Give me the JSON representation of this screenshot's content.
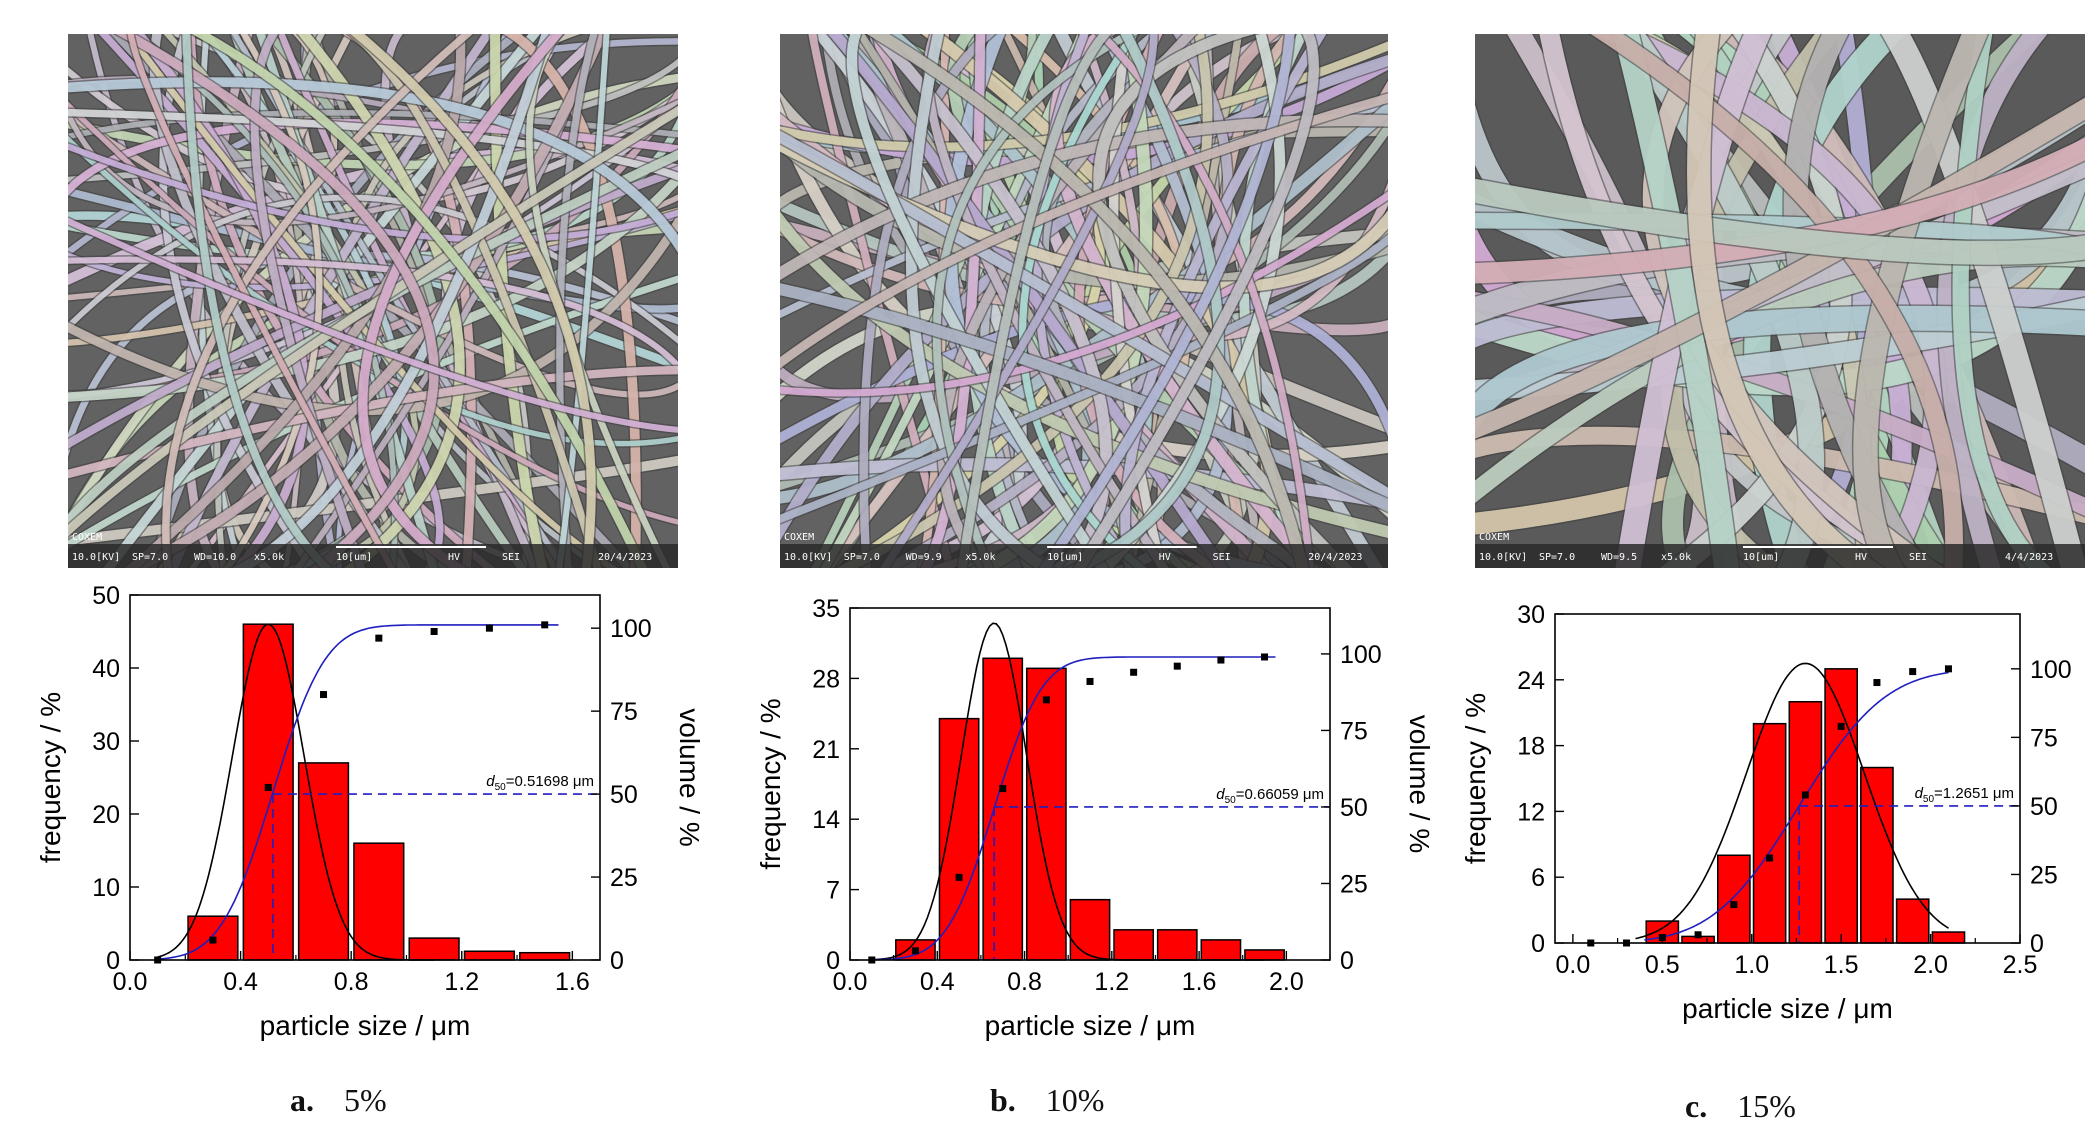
{
  "panels": [
    {
      "sem": {
        "brand": "COXEM",
        "info": [
          "10.0[KV]",
          "SP=7.0",
          "WD=10.0",
          "x5.0k",
          "10[um]",
          "HV",
          "SEI",
          "20/4/2023"
        ]
      },
      "caption": {
        "letter": "a.",
        "text": "5%"
      }
    },
    {
      "sem": {
        "brand": "COXEM",
        "info": [
          "10.0[KV]",
          "SP=7.0",
          "WD=9.9",
          "x5.0k",
          "10[um]",
          "HV",
          "SEI",
          "20/4/2023"
        ]
      },
      "caption": {
        "letter": "b.",
        "text": "10%"
      }
    },
    {
      "sem": {
        "brand": "COXEM",
        "info": [
          "10.0[KV]",
          "SP=7.0",
          "WD=9.5",
          "x5.0k",
          "10[um]",
          "HV",
          "SEI",
          "4/4/2023"
        ]
      },
      "caption": {
        "letter": "c.",
        "text": "15%"
      }
    }
  ],
  "chart_data": [
    {
      "type": "bar",
      "xlabel": "particle size / μm",
      "ylabel": "frequency / %",
      "y2label": "volume / %",
      "xlim": [
        0.0,
        1.7
      ],
      "xticks": [
        "0.0",
        "0.4",
        "0.8",
        "1.2",
        "1.6"
      ],
      "ylim": [
        0,
        50
      ],
      "yticks": [
        "0",
        "10",
        "20",
        "30",
        "40",
        "50"
      ],
      "y2lim": [
        0,
        110
      ],
      "y2ticks": [
        "0",
        "25",
        "50",
        "75",
        "100"
      ],
      "bar_width": 0.2,
      "bars": {
        "x": [
          0.3,
          0.5,
          0.7,
          0.9,
          1.1,
          1.3,
          1.5
        ],
        "y": [
          6,
          46,
          27,
          16,
          3,
          1.2,
          1
        ]
      },
      "volume_points": {
        "x": [
          0.1,
          0.3,
          0.5,
          0.7,
          0.9,
          1.1,
          1.3,
          1.5
        ],
        "y": [
          0,
          6,
          52,
          80,
          97,
          99,
          100,
          101
        ]
      },
      "d50": {
        "value": 0.51698,
        "volume": 50,
        "label_sub": "50",
        "label_rest": "=0.51698 μm"
      },
      "gauss": {
        "mean": 0.5,
        "sigma": 0.13,
        "amp": 46,
        "range": [
          0.1,
          1.1
        ]
      },
      "cdf": {
        "range": [
          0.1,
          1.55
        ]
      }
    },
    {
      "type": "bar",
      "xlabel": "particle size / μm",
      "ylabel": "frequency / %",
      "y2label": "volume / %",
      "xlim": [
        0.0,
        2.2
      ],
      "xticks": [
        "0.0",
        "0.4",
        "0.8",
        "1.2",
        "1.6",
        "2.0"
      ],
      "ylim": [
        0,
        35
      ],
      "yticks": [
        "0",
        "7",
        "14",
        "21",
        "28",
        "35"
      ],
      "y2lim": [
        0,
        115
      ],
      "y2ticks": [
        "0",
        "25",
        "50",
        "75",
        "100"
      ],
      "bar_width": 0.2,
      "bars": {
        "x": [
          0.3,
          0.5,
          0.7,
          0.9,
          1.1,
          1.3,
          1.5,
          1.7,
          1.9
        ],
        "y": [
          2,
          24,
          30,
          29,
          6,
          3,
          3,
          2,
          1
        ]
      },
      "volume_points": {
        "x": [
          0.1,
          0.3,
          0.5,
          0.7,
          0.9,
          1.1,
          1.3,
          1.5,
          1.7,
          1.9
        ],
        "y": [
          0,
          3,
          27,
          56,
          85,
          91,
          94,
          96,
          98,
          99
        ]
      },
      "d50": {
        "value": 0.66059,
        "volume": 50,
        "label_sub": "50",
        "label_rest": "=0.66059 μm"
      },
      "gauss": {
        "mean": 0.66,
        "sigma": 0.15,
        "amp": 33.5,
        "range": [
          0.1,
          1.9
        ]
      },
      "cdf": {
        "range": [
          0.1,
          1.95
        ]
      }
    },
    {
      "type": "bar",
      "xlabel": "particle size / μm",
      "ylabel": "frequency / %",
      "y2label": "volume / %",
      "xlim": [
        -0.1,
        2.5
      ],
      "xticks": [
        "0.0",
        "0.5",
        "1.0",
        "1.5",
        "2.0",
        "2.5"
      ],
      "ylim": [
        0,
        30
      ],
      "yticks": [
        "0",
        "6",
        "12",
        "18",
        "24",
        "30"
      ],
      "y2lim": [
        0,
        120
      ],
      "y2ticks": [
        "0",
        "25",
        "50",
        "75",
        "100"
      ],
      "bar_width": 0.2,
      "bars": {
        "x": [
          0.5,
          0.7,
          0.9,
          1.1,
          1.3,
          1.5,
          1.7,
          1.9,
          2.1
        ],
        "y": [
          2,
          0.6,
          8,
          20,
          22,
          25,
          16,
          4,
          1
        ]
      },
      "volume_points": {
        "x": [
          0.1,
          0.3,
          0.5,
          0.7,
          0.9,
          1.1,
          1.3,
          1.5,
          1.7,
          1.9,
          2.1
        ],
        "y": [
          0,
          0,
          2,
          3,
          14,
          31,
          54,
          79,
          95,
          99,
          100
        ]
      },
      "d50": {
        "value": 1.2651,
        "volume": 50,
        "label_sub": "50",
        "label_rest": "=1.2651 μm"
      },
      "gauss": {
        "mean": 1.3,
        "sigma": 0.33,
        "amp": 25.5,
        "range": [
          0.35,
          2.1
        ]
      },
      "cdf": {
        "range": [
          0.4,
          2.1
        ]
      }
    }
  ],
  "colors": {
    "bar_fill": "#ff0000",
    "bar_stroke": "#000000",
    "volume_curve": "#1f1fbf",
    "d50_line": "#1f1fbf",
    "gauss_curve": "#000000",
    "point": "#000000"
  }
}
